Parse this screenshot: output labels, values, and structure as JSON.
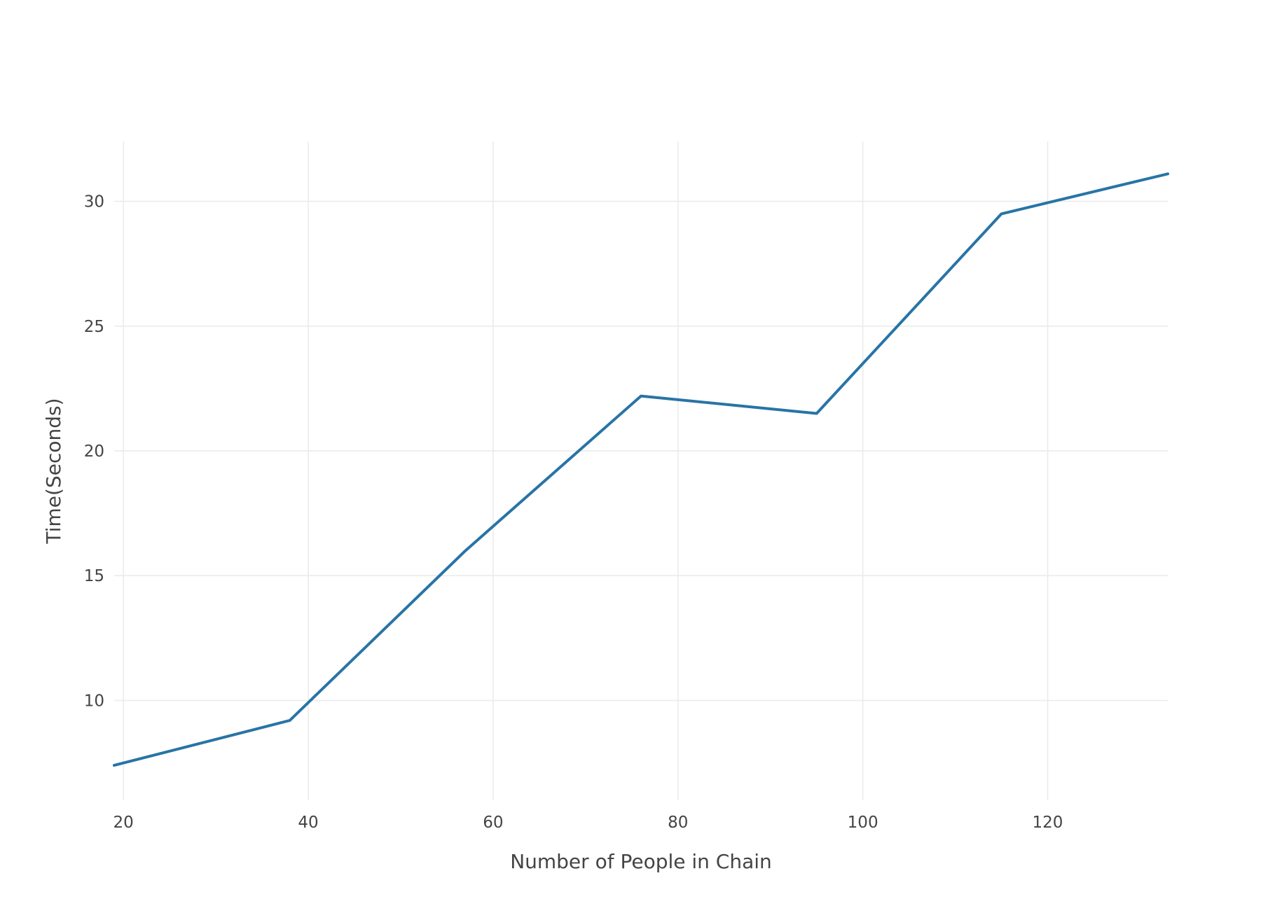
{
  "chart_data": {
    "type": "line",
    "title": "",
    "xlabel": "Number of People in Chain",
    "ylabel": "Time(Seconds)",
    "xlim": [
      19,
      133
    ],
    "ylim": [
      6.0,
      32.4
    ],
    "x_ticks": [
      20,
      40,
      60,
      80,
      100,
      120
    ],
    "y_ticks": [
      10,
      15,
      20,
      25,
      30
    ],
    "grid": true,
    "legend": "none",
    "series": [
      {
        "color": "#2874a6",
        "x": [
          19,
          38,
          57,
          76,
          95,
          115,
          133
        ],
        "y": [
          7.4,
          9.2,
          16.0,
          22.2,
          21.5,
          29.5,
          31.1
        ]
      }
    ]
  }
}
